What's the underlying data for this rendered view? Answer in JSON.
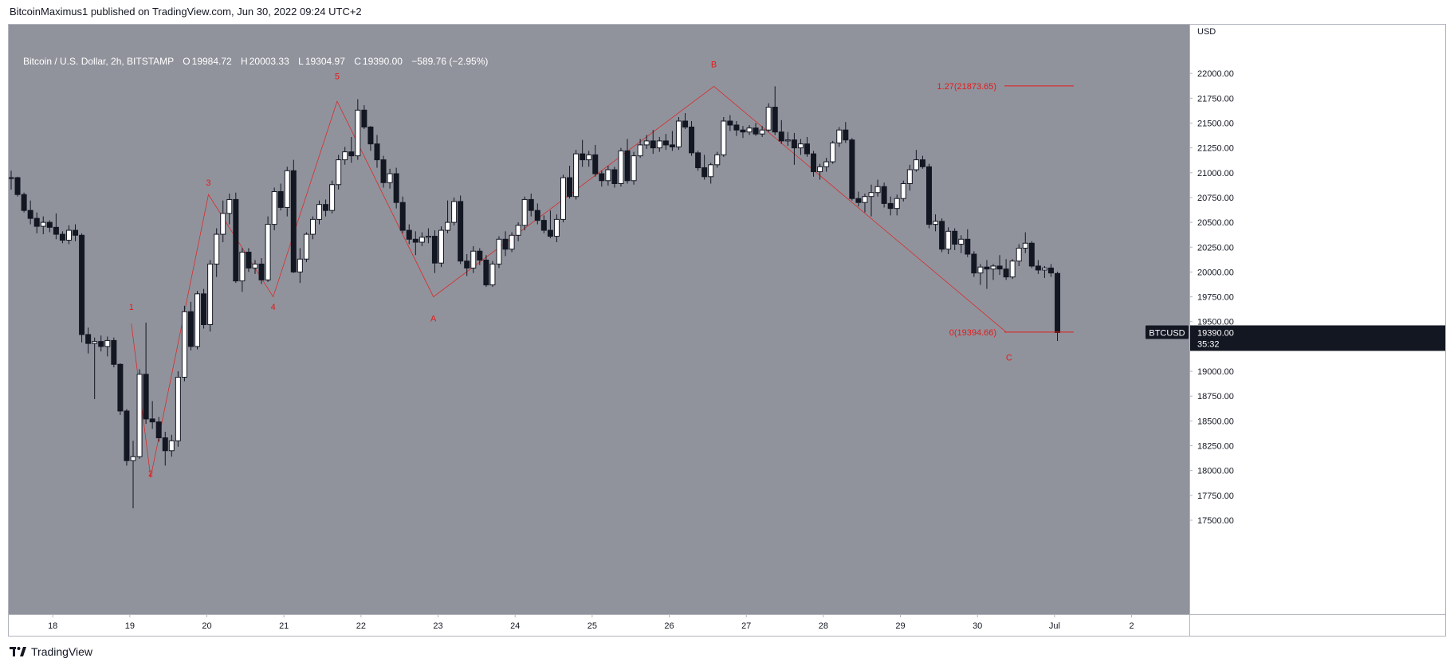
{
  "publisher": "BitcoinMaximus1 published on TradingView.com, Jun 30, 2022 09:24 UTC+2",
  "footer": {
    "brand": "TradingView",
    "logo_icon": "tradingview-logo-icon"
  },
  "legend": {
    "symbol": "Bitcoin / U.S. Dollar, 2h, BITSTAMP",
    "o_label": "O",
    "o_value": "19984.72",
    "h_label": "H",
    "h_value": "20003.33",
    "l_label": "L",
    "l_value": "19304.97",
    "c_label": "C",
    "c_value": "19390.00",
    "change": "−589.76 (−2.95%)"
  },
  "colors": {
    "background": "#91939c",
    "up_body": "#ffffff",
    "down_body": "#131722",
    "wick": "#131722",
    "annotation": "#e31a1a",
    "axis_text": "#131722",
    "price_tag_bg": "#131722"
  },
  "chart_data": {
    "type": "candlestick",
    "currency": "USD",
    "symbol_tag": "BTCUSD",
    "last_price_label": "19390.00",
    "countdown": "35:32",
    "ylim": [
      17500,
      22250
    ],
    "y_ticks": [
      "17500.00",
      "17750.00",
      "18000.00",
      "18250.00",
      "18500.00",
      "18750.00",
      "19000.00",
      "19250.00",
      "19500.00",
      "19750.00",
      "20000.00",
      "20250.00",
      "20500.00",
      "20750.00",
      "21000.00",
      "21250.00",
      "21500.00",
      "21750.00",
      "22000.00"
    ],
    "x_ticks": [
      "18",
      "19",
      "20",
      "21",
      "22",
      "23",
      "24",
      "25",
      "26",
      "27",
      "28",
      "29",
      "30",
      "Jul",
      "2"
    ],
    "x_tick_days": [
      18,
      19,
      20,
      21,
      22,
      23,
      24,
      25,
      26,
      27,
      28,
      29,
      30,
      31,
      32
    ],
    "xlim_days": [
      17.46,
      32.46
    ],
    "candle_start_day": 17.46,
    "candle_interval_days": 0.0833,
    "ohlc": [
      [
        20950,
        21020,
        20830,
        20950
      ],
      [
        20950,
        20960,
        20760,
        20780
      ],
      [
        20780,
        20800,
        20600,
        20620
      ],
      [
        20620,
        20720,
        20480,
        20540
      ],
      [
        20540,
        20600,
        20390,
        20460
      ],
      [
        20460,
        20560,
        20380,
        20500
      ],
      [
        20500,
        20520,
        20400,
        20450
      ],
      [
        20450,
        20590,
        20330,
        20380
      ],
      [
        20380,
        20410,
        20290,
        20320
      ],
      [
        20320,
        20470,
        20280,
        20420
      ],
      [
        20420,
        20480,
        20310,
        20370
      ],
      [
        20370,
        20390,
        19290,
        19370
      ],
      [
        19370,
        19440,
        19180,
        19280
      ],
      [
        19280,
        19340,
        18720,
        19300
      ],
      [
        19300,
        19360,
        19200,
        19250
      ],
      [
        19250,
        19350,
        19150,
        19310
      ],
      [
        19310,
        19340,
        19040,
        19070
      ],
      [
        19070,
        19080,
        18560,
        18600
      ],
      [
        18600,
        18620,
        18050,
        18100
      ],
      [
        18100,
        18300,
        17620,
        18140
      ],
      [
        18140,
        19020,
        18120,
        18970
      ],
      [
        18970,
        19490,
        18470,
        18520
      ],
      [
        18520,
        18700,
        18420,
        18490
      ],
      [
        18490,
        18540,
        18290,
        18330
      ],
      [
        18330,
        18390,
        18050,
        18200
      ],
      [
        18200,
        18360,
        18140,
        18300
      ],
      [
        18300,
        19000,
        18240,
        18940
      ],
      [
        18940,
        19660,
        18900,
        19600
      ],
      [
        19600,
        19700,
        19210,
        19250
      ],
      [
        19250,
        19810,
        19220,
        19780
      ],
      [
        19780,
        19830,
        19430,
        19470
      ],
      [
        19470,
        20120,
        19400,
        20080
      ],
      [
        20080,
        20440,
        19950,
        20380
      ],
      [
        20380,
        20720,
        20300,
        20590
      ],
      [
        20590,
        20790,
        20480,
        20730
      ],
      [
        20730,
        20800,
        19890,
        19910
      ],
      [
        19910,
        20240,
        19800,
        20200
      ],
      [
        20200,
        20240,
        20000,
        20040
      ],
      [
        20040,
        20120,
        19980,
        20080
      ],
      [
        20080,
        20140,
        19880,
        19920
      ],
      [
        19920,
        20560,
        19900,
        20480
      ],
      [
        20480,
        20850,
        20420,
        20810
      ],
      [
        20810,
        20890,
        20620,
        20650
      ],
      [
        20650,
        21060,
        20560,
        21020
      ],
      [
        21020,
        21130,
        19990,
        20000
      ],
      [
        20000,
        20240,
        19890,
        20130
      ],
      [
        20130,
        20400,
        20100,
        20380
      ],
      [
        20380,
        20560,
        20330,
        20530
      ],
      [
        20530,
        20720,
        20480,
        20680
      ],
      [
        20680,
        20730,
        20560,
        20620
      ],
      [
        20620,
        20920,
        20590,
        20880
      ],
      [
        20880,
        21180,
        20830,
        21130
      ],
      [
        21130,
        21260,
        21080,
        21210
      ],
      [
        21210,
        21360,
        21100,
        21170
      ],
      [
        21170,
        21740,
        21130,
        21630
      ],
      [
        21630,
        21680,
        21440,
        21460
      ],
      [
        21460,
        21470,
        21220,
        21290
      ],
      [
        21290,
        21380,
        21050,
        21130
      ],
      [
        21130,
        21170,
        20850,
        20900
      ],
      [
        20900,
        21040,
        20840,
        20990
      ],
      [
        20990,
        21050,
        20640,
        20700
      ],
      [
        20700,
        20760,
        20390,
        20420
      ],
      [
        20420,
        20480,
        20280,
        20330
      ],
      [
        20330,
        20410,
        20170,
        20300
      ],
      [
        20300,
        20400,
        20260,
        20350
      ],
      [
        20350,
        20440,
        20290,
        20360
      ],
      [
        20360,
        20420,
        19990,
        20090
      ],
      [
        20090,
        20460,
        20050,
        20420
      ],
      [
        20420,
        20720,
        20390,
        20500
      ],
      [
        20500,
        20750,
        20470,
        20710
      ],
      [
        20710,
        20770,
        20080,
        20110
      ],
      [
        20110,
        20180,
        19960,
        20040
      ],
      [
        20040,
        20260,
        19990,
        20210
      ],
      [
        20210,
        20240,
        20070,
        20120
      ],
      [
        20120,
        20170,
        19850,
        19870
      ],
      [
        19870,
        20110,
        19850,
        20080
      ],
      [
        20080,
        20360,
        20040,
        20330
      ],
      [
        20330,
        20410,
        20160,
        20230
      ],
      [
        20230,
        20400,
        20200,
        20370
      ],
      [
        20370,
        20500,
        20310,
        20470
      ],
      [
        20470,
        20760,
        20420,
        20730
      ],
      [
        20730,
        20790,
        20560,
        20620
      ],
      [
        20620,
        20690,
        20480,
        20520
      ],
      [
        20520,
        20570,
        20390,
        20420
      ],
      [
        20420,
        20620,
        20340,
        20360
      ],
      [
        20360,
        20580,
        20300,
        20530
      ],
      [
        20530,
        20980,
        20500,
        20950
      ],
      [
        20950,
        21070,
        20740,
        20760
      ],
      [
        20760,
        21230,
        20730,
        21190
      ],
      [
        21190,
        21330,
        21060,
        21130
      ],
      [
        21130,
        21220,
        21060,
        21180
      ],
      [
        21180,
        21280,
        20960,
        20990
      ],
      [
        20990,
        21020,
        20860,
        20920
      ],
      [
        20920,
        21070,
        20870,
        21030
      ],
      [
        21030,
        21060,
        20850,
        20890
      ],
      [
        20890,
        21250,
        20860,
        21220
      ],
      [
        21220,
        21340,
        20890,
        20920
      ],
      [
        20920,
        21210,
        20880,
        21170
      ],
      [
        21170,
        21340,
        21150,
        21280
      ],
      [
        21280,
        21380,
        21240,
        21320
      ],
      [
        21320,
        21430,
        21190,
        21250
      ],
      [
        21250,
        21360,
        21210,
        21320
      ],
      [
        21320,
        21390,
        21230,
        21280
      ],
      [
        21280,
        21420,
        21220,
        21260
      ],
      [
        21260,
        21560,
        21230,
        21520
      ],
      [
        21520,
        21600,
        21440,
        21460
      ],
      [
        21460,
        21520,
        21170,
        21200
      ],
      [
        21200,
        21220,
        21020,
        21050
      ],
      [
        21050,
        21180,
        20930,
        20960
      ],
      [
        20960,
        21100,
        20890,
        21080
      ],
      [
        21080,
        21210,
        21050,
        21180
      ],
      [
        21180,
        21560,
        21160,
        21520
      ],
      [
        21520,
        21580,
        21420,
        21480
      ],
      [
        21480,
        21520,
        21370,
        21430
      ],
      [
        21430,
        21470,
        21350,
        21410
      ],
      [
        21410,
        21480,
        21380,
        21450
      ],
      [
        21450,
        21500,
        21370,
        21390
      ],
      [
        21390,
        21470,
        21360,
        21430
      ],
      [
        21430,
        21700,
        21410,
        21660
      ],
      [
        21660,
        21870,
        21380,
        21410
      ],
      [
        21410,
        21530,
        21290,
        21320
      ],
      [
        21320,
        21410,
        21270,
        21330
      ],
      [
        21330,
        21400,
        21080,
        21250
      ],
      [
        21250,
        21340,
        21180,
        21290
      ],
      [
        21290,
        21360,
        21160,
        21190
      ],
      [
        21190,
        21220,
        20960,
        21010
      ],
      [
        21010,
        21090,
        20930,
        21060
      ],
      [
        21060,
        21150,
        21010,
        21110
      ],
      [
        21110,
        21320,
        21090,
        21300
      ],
      [
        21300,
        21460,
        21260,
        21430
      ],
      [
        21430,
        21510,
        21300,
        21330
      ],
      [
        21330,
        21350,
        20720,
        20740
      ],
      [
        20740,
        20810,
        20660,
        20700
      ],
      [
        20700,
        20790,
        20600,
        20760
      ],
      [
        20760,
        20880,
        20560,
        20800
      ],
      [
        20800,
        20930,
        20760,
        20860
      ],
      [
        20860,
        20900,
        20650,
        20690
      ],
      [
        20690,
        20760,
        20570,
        20640
      ],
      [
        20640,
        20780,
        20570,
        20740
      ],
      [
        20740,
        20920,
        20710,
        20890
      ],
      [
        20890,
        21080,
        20820,
        21030
      ],
      [
        21030,
        21230,
        21010,
        21130
      ],
      [
        21130,
        21170,
        21040,
        21060
      ],
      [
        21060,
        21090,
        20440,
        20480
      ],
      [
        20480,
        20580,
        20410,
        20510
      ],
      [
        20510,
        20540,
        20200,
        20230
      ],
      [
        20230,
        20450,
        20180,
        20410
      ],
      [
        20410,
        20440,
        20220,
        20280
      ],
      [
        20280,
        20370,
        20190,
        20330
      ],
      [
        20330,
        20430,
        20150,
        20180
      ],
      [
        20180,
        20210,
        19950,
        19990
      ],
      [
        19990,
        20080,
        19870,
        20050
      ],
      [
        20050,
        20120,
        19830,
        20030
      ],
      [
        20030,
        20080,
        19920,
        20060
      ],
      [
        20060,
        20170,
        19970,
        20030
      ],
      [
        20030,
        20130,
        19920,
        19950
      ],
      [
        19950,
        20130,
        19930,
        20110
      ],
      [
        20110,
        20280,
        20060,
        20240
      ],
      [
        20240,
        20400,
        20190,
        20290
      ],
      [
        20290,
        20310,
        20040,
        20060
      ],
      [
        20060,
        20120,
        19980,
        20020
      ],
      [
        20020,
        20060,
        19940,
        20040
      ],
      [
        20040,
        20080,
        19950,
        19990
      ],
      [
        19985,
        20003,
        19305,
        19390
      ]
    ],
    "wave_labels": [
      {
        "text": "1",
        "day": 19.02,
        "price": 19620
      },
      {
        "text": "2",
        "day": 19.27,
        "price": 17940
      },
      {
        "text": "3",
        "day": 20.02,
        "price": 20870
      },
      {
        "text": "4",
        "day": 20.86,
        "price": 19620
      },
      {
        "text": "5",
        "day": 21.69,
        "price": 21940
      },
      {
        "text": "A",
        "day": 22.94,
        "price": 19500
      },
      {
        "text": "B",
        "day": 26.58,
        "price": 22060
      },
      {
        "text": "C",
        "day": 30.41,
        "price": 19110
      }
    ],
    "wave_path": [
      [
        19.02,
        19480
      ],
      [
        19.27,
        17930
      ],
      [
        20.02,
        20780
      ],
      [
        20.86,
        19750
      ],
      [
        21.69,
        21720
      ],
      [
        22.94,
        19750
      ],
      [
        26.58,
        21870
      ],
      [
        30.38,
        19390
      ]
    ],
    "fib_levels": [
      {
        "label": "1.27(21873.65)",
        "price": 21873.65,
        "start_day": 30.35,
        "end_day": 31.25
      },
      {
        "label": "0(19394.66)",
        "price": 19394.66,
        "start_day": 30.35,
        "end_day": 31.25
      }
    ]
  }
}
